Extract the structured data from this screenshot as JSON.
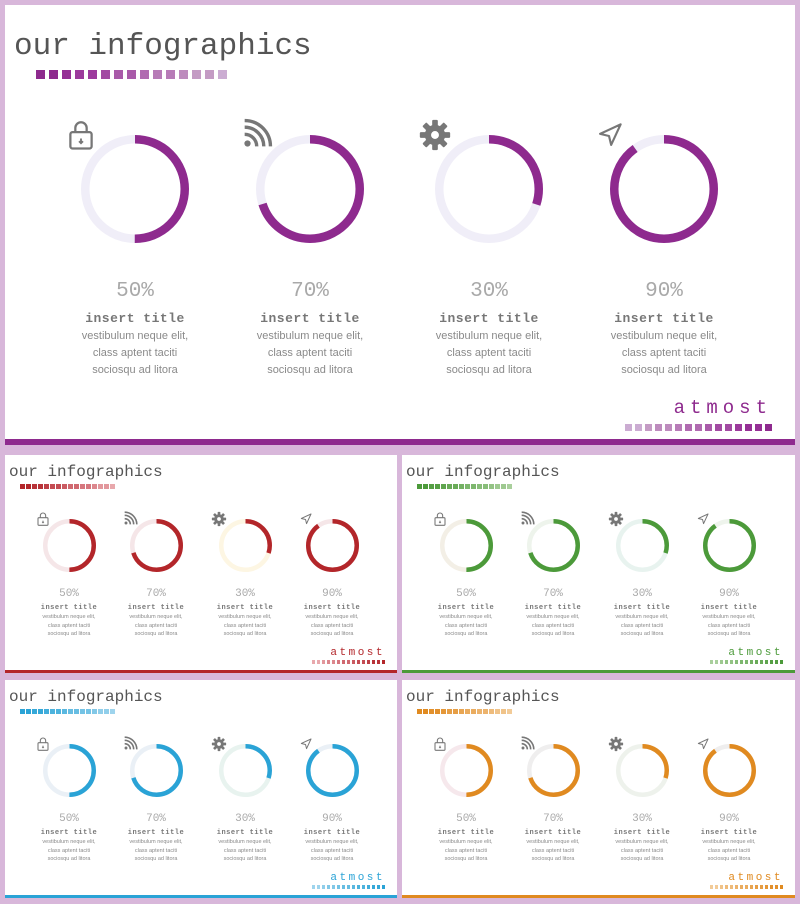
{
  "slides": [
    {
      "id": "large",
      "title": "our infographics",
      "brand": "atmost",
      "accent": "#8e2a8e",
      "track": "#f0eef8",
      "square_colors": [
        "#8e2a8e",
        "#952f95",
        "#9c3a9c",
        "#a24aa2",
        "#a95aa9",
        "#b06ab0",
        "#b77bb7",
        "#bd8bbd",
        "#c49bc4",
        "#cbacd2"
      ],
      "items": [
        {
          "percent_label": "50%",
          "value": 0.5,
          "icon": "lock-icon",
          "title": "insert title",
          "lines": [
            "vestibulum neque elit,",
            "class aptent taciti",
            "sociosqu ad litora"
          ]
        },
        {
          "percent_label": "70%",
          "value": 0.7,
          "icon": "rss-icon",
          "title": "insert title",
          "lines": [
            "vestibulum neque elit,",
            "class aptent taciti",
            "sociosqu ad litora"
          ]
        },
        {
          "percent_label": "30%",
          "value": 0.3,
          "icon": "gear-icon",
          "title": "insert title",
          "lines": [
            "vestibulum neque elit,",
            "class aptent taciti",
            "sociosqu ad litora"
          ]
        },
        {
          "percent_label": "90%",
          "value": 0.9,
          "icon": "navigation-arrow-icon",
          "title": "insert title",
          "lines": [
            "vestibulum neque elit,",
            "class aptent taciti",
            "sociosqu ad litora"
          ]
        }
      ]
    },
    {
      "id": "red",
      "title": "our infographics",
      "brand": "atmost",
      "accent": "#b3262a",
      "tracks": [
        "#f5e6e8",
        "#f5e6e8",
        "#fdf6e3",
        "#f5e6e8"
      ],
      "square_colors": [
        "#b3262a",
        "#b83238",
        "#bd3f46",
        "#c44c53",
        "#ca5a61",
        "#d0686f",
        "#d6777e",
        "#dc878d",
        "#e2979c",
        "#e8a8ac"
      ],
      "items": [
        {
          "percent_label": "50%",
          "value": 0.5,
          "icon": "lock-icon",
          "title": "insert title",
          "lines": [
            "vestibulum neque elit,",
            "class aptent taciti",
            "sociosqu ad litora"
          ]
        },
        {
          "percent_label": "70%",
          "value": 0.7,
          "icon": "rss-icon",
          "title": "insert title",
          "lines": [
            "vestibulum neque elit,",
            "class aptent taciti",
            "sociosqu ad litora"
          ]
        },
        {
          "percent_label": "30%",
          "value": 0.3,
          "icon": "gear-icon",
          "title": "insert title",
          "lines": [
            "vestibulum neque elit,",
            "class aptent taciti",
            "sociosqu ad litora"
          ]
        },
        {
          "percent_label": "90%",
          "value": 0.9,
          "icon": "navigation-arrow-icon",
          "title": "insert title",
          "lines": [
            "vestibulum neque elit,",
            "class aptent taciti",
            "sociosqu ad litora"
          ]
        }
      ]
    },
    {
      "id": "green",
      "title": "our infographics",
      "brand": "atmost",
      "accent": "#4c9a3a",
      "tracks": [
        "#f3efe6",
        "#eef4ec",
        "#e8f3ef",
        "#eef4ec"
      ],
      "square_colors": [
        "#4c9a3a",
        "#559f44",
        "#5fa54e",
        "#69ab58",
        "#73b163",
        "#7db76e",
        "#88bd79",
        "#93c384",
        "#9ec990",
        "#a9cf9c"
      ],
      "items": [
        {
          "percent_label": "50%",
          "value": 0.5,
          "icon": "lock-icon",
          "title": "insert title",
          "lines": [
            "vestibulum neque elit,",
            "class aptent taciti",
            "sociosqu ad litora"
          ]
        },
        {
          "percent_label": "70%",
          "value": 0.7,
          "icon": "rss-icon",
          "title": "insert title",
          "lines": [
            "vestibulum neque elit,",
            "class aptent taciti",
            "sociosqu ad litora"
          ]
        },
        {
          "percent_label": "30%",
          "value": 0.3,
          "icon": "gear-icon",
          "title": "insert title",
          "lines": [
            "vestibulum neque elit,",
            "class aptent taciti",
            "sociosqu ad litora"
          ]
        },
        {
          "percent_label": "90%",
          "value": 0.9,
          "icon": "navigation-arrow-icon",
          "title": "insert title",
          "lines": [
            "vestibulum neque elit,",
            "class aptent taciti",
            "sociosqu ad litora"
          ]
        }
      ]
    },
    {
      "id": "blue",
      "title": "our infographics",
      "brand": "atmost",
      "accent": "#2aa3d6",
      "tracks": [
        "#eaf0f6",
        "#eaf0f6",
        "#e8f3ef",
        "#eaf0f6"
      ],
      "square_colors": [
        "#2aa3d6",
        "#35a8d8",
        "#41addb",
        "#4db3dd",
        "#5ab8e0",
        "#67bde2",
        "#74c3e5",
        "#82c8e7",
        "#90ceea",
        "#9ed4ed"
      ],
      "items": [
        {
          "percent_label": "50%",
          "value": 0.5,
          "icon": "lock-icon",
          "title": "insert title",
          "lines": [
            "vestibulum neque elit,",
            "class aptent taciti",
            "sociosqu ad litora"
          ]
        },
        {
          "percent_label": "70%",
          "value": 0.7,
          "icon": "rss-icon",
          "title": "insert title",
          "lines": [
            "vestibulum neque elit,",
            "class aptent taciti",
            "sociosqu ad litora"
          ]
        },
        {
          "percent_label": "30%",
          "value": 0.3,
          "icon": "gear-icon",
          "title": "insert title",
          "lines": [
            "vestibulum neque elit,",
            "class aptent taciti",
            "sociosqu ad litora"
          ]
        },
        {
          "percent_label": "90%",
          "value": 0.9,
          "icon": "navigation-arrow-icon",
          "title": "insert title",
          "lines": [
            "vestibulum neque elit,",
            "class aptent taciti",
            "sociosqu ad litora"
          ]
        }
      ]
    },
    {
      "id": "orange",
      "title": "our infographics",
      "brand": "atmost",
      "accent": "#e08a20",
      "tracks": [
        "#f6e8ec",
        "#efeeee",
        "#eef2ec",
        "#efeeee"
      ],
      "square_colors": [
        "#e08a20",
        "#e2902c",
        "#e49738",
        "#e69e45",
        "#e8a552",
        "#eaac5f",
        "#ecb36d",
        "#eebb7b",
        "#f0c389",
        "#f2cb98"
      ],
      "items": [
        {
          "percent_label": "50%",
          "value": 0.5,
          "icon": "lock-icon",
          "title": "insert title",
          "lines": [
            "vestibulum neque elit,",
            "class aptent taciti",
            "sociosqu ad litora"
          ]
        },
        {
          "percent_label": "70%",
          "value": 0.7,
          "icon": "rss-icon",
          "title": "insert title",
          "lines": [
            "vestibulum neque elit,",
            "class aptent taciti",
            "sociosqu ad litora"
          ]
        },
        {
          "percent_label": "30%",
          "value": 0.3,
          "icon": "gear-icon",
          "title": "insert title",
          "lines": [
            "vestibulum neque elit,",
            "class aptent taciti",
            "sociosqu ad litora"
          ]
        },
        {
          "percent_label": "90%",
          "value": 0.9,
          "icon": "navigation-arrow-icon",
          "title": "insert title",
          "lines": [
            "vestibulum neque elit,",
            "class aptent taciti",
            "sociosqu ad litora"
          ]
        }
      ]
    }
  ]
}
